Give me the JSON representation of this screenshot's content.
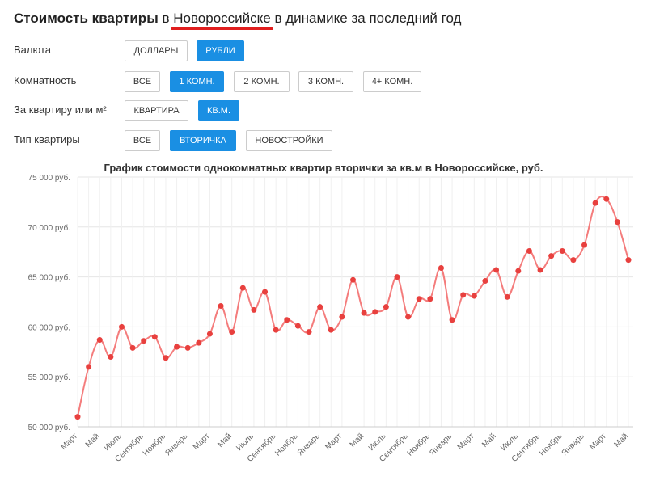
{
  "header": {
    "part1": "Стоимость квартиры",
    "part2": "в",
    "city": "Новороссийске",
    "part3": "в динамике за последний год"
  },
  "filters": [
    {
      "label": "Валюта",
      "options": [
        {
          "label": "ДОЛЛАРЫ",
          "active": false
        },
        {
          "label": "РУБЛИ",
          "active": true
        }
      ]
    },
    {
      "label": "Комнатность",
      "options": [
        {
          "label": "ВСЕ",
          "active": false
        },
        {
          "label": "1 КОМН.",
          "active": true
        },
        {
          "label": "2 КОМН.",
          "active": false
        },
        {
          "label": "3 КОМН.",
          "active": false
        },
        {
          "label": "4+ КОМН.",
          "active": false
        }
      ]
    },
    {
      "label": "За квартиру или м²",
      "options": [
        {
          "label": "КВАРТИРА",
          "active": false
        },
        {
          "label": "КВ.М.",
          "active": true
        }
      ]
    },
    {
      "label": "Тип квартиры",
      "options": [
        {
          "label": "ВСЕ",
          "active": false
        },
        {
          "label": "ВТОРИЧКА",
          "active": true
        },
        {
          "label": "НОВОСТРОЙКИ",
          "active": false
        }
      ]
    }
  ],
  "colors": {
    "accent": "#1a8fe3",
    "line": "#f47c7c",
    "point": "#e8403e",
    "underline": "#e01e1e"
  },
  "chart_data": {
    "type": "line",
    "title": "График стоимости однокомнатных квартир вторички за кв.м в Новороссийске, руб.",
    "xlabel": "",
    "ylabel": "",
    "ylim": [
      50000,
      75000
    ],
    "y_ticks": [
      {
        "value": 75000,
        "label": "75 000 руб."
      },
      {
        "value": 70000,
        "label": "70 000 руб."
      },
      {
        "value": 65000,
        "label": "65 000 руб."
      },
      {
        "value": 60000,
        "label": "60 000 руб."
      },
      {
        "value": 55000,
        "label": "55 000 руб."
      },
      {
        "value": 50000,
        "label": "50 000 руб."
      }
    ],
    "x_tick_labels": [
      "Март",
      "Май",
      "Июль",
      "Сентябрь",
      "Ноябрь",
      "Январь",
      "Март",
      "Май",
      "Июль",
      "Сентябрь",
      "Ноябрь",
      "Январь",
      "Март",
      "Май",
      "Июль",
      "Сентябрь",
      "Ноябрь",
      "Январь",
      "Март",
      "Май",
      "Июль",
      "Сентябрь",
      "Ноябрь",
      "Январь",
      "Март",
      "Май"
    ],
    "grid": true,
    "legend": "none",
    "series": [
      {
        "values": [
          51000,
          56000,
          58700,
          57000,
          60000,
          57900,
          58600,
          59000,
          56900,
          58000,
          57900,
          58400,
          59300,
          62100,
          59500,
          63900,
          61700,
          63500,
          59700,
          60700,
          60100,
          59500,
          62000,
          59700,
          61000,
          64700,
          61400,
          61500,
          62000,
          65000,
          61000,
          62800,
          62800,
          65900,
          60700,
          63200,
          63100,
          64600,
          65700,
          63000,
          65600,
          67600,
          65700,
          67100,
          67600,
          66700,
          68200,
          72400,
          72800,
          70500,
          66700
        ]
      }
    ]
  }
}
